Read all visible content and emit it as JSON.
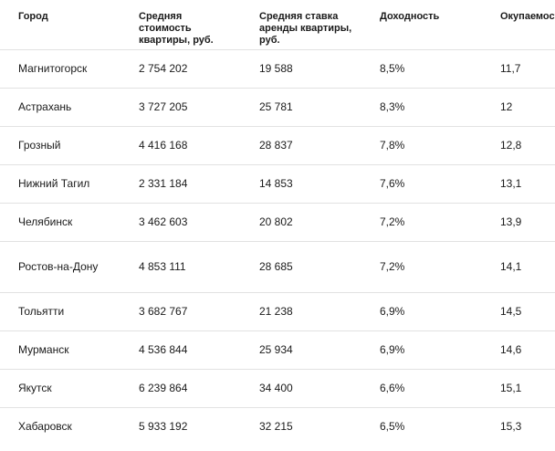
{
  "table": {
    "headers": [
      "Город",
      "Средняя стоимость квартиры, руб.",
      "Средняя ставка аренды квартиры, руб.",
      "Доходность",
      "Окупаемость, лет"
    ],
    "rows": [
      [
        "Магнитогорск",
        "2 754 202",
        "19 588",
        "8,5%",
        "11,7"
      ],
      [
        "Астрахань",
        "3 727 205",
        "25 781",
        "8,3%",
        "12"
      ],
      [
        "Грозный",
        "4 416 168",
        "28 837",
        "7,8%",
        "12,8"
      ],
      [
        "Нижний Тагил",
        "2 331 184",
        "14 853",
        "7,6%",
        "13,1"
      ],
      [
        "Челябинск",
        "3 462 603",
        "20 802",
        "7,2%",
        "13,9"
      ],
      [
        "Ростов-на-Дону",
        "4 853 111",
        "28 685",
        "7,2%",
        "14,1"
      ],
      [
        "Тольятти",
        "3 682 767",
        "21 238",
        "6,9%",
        "14,5"
      ],
      [
        "Мурманск",
        "4 536 844",
        "25 934",
        "6,9%",
        "14,6"
      ],
      [
        "Якутск",
        "6 239 864",
        "34 400",
        "6,6%",
        "15,1"
      ],
      [
        "Хабаровск",
        "5 933 192",
        "32 215",
        "6,5%",
        "15,3"
      ]
    ]
  }
}
